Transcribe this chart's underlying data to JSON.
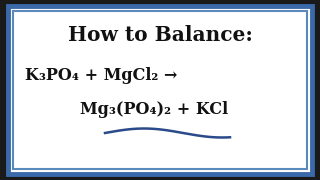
{
  "title": "How to Balance:",
  "line1": "K₃PO₄ + MgCl₂ →",
  "line2": "Mg₃(PO₄)₂ + KCl",
  "bg_color": "#1a1a1a",
  "box_bg": "#ffffff",
  "border_outer": "#3a6aaa",
  "border_inner": "#5a8abb",
  "text_color": "#111111",
  "wave_color": "#2a4a8a",
  "title_fontsize": 14.5,
  "eq_fontsize": 11.5,
  "fig_width": 3.2,
  "fig_height": 1.8,
  "dpi": 100
}
